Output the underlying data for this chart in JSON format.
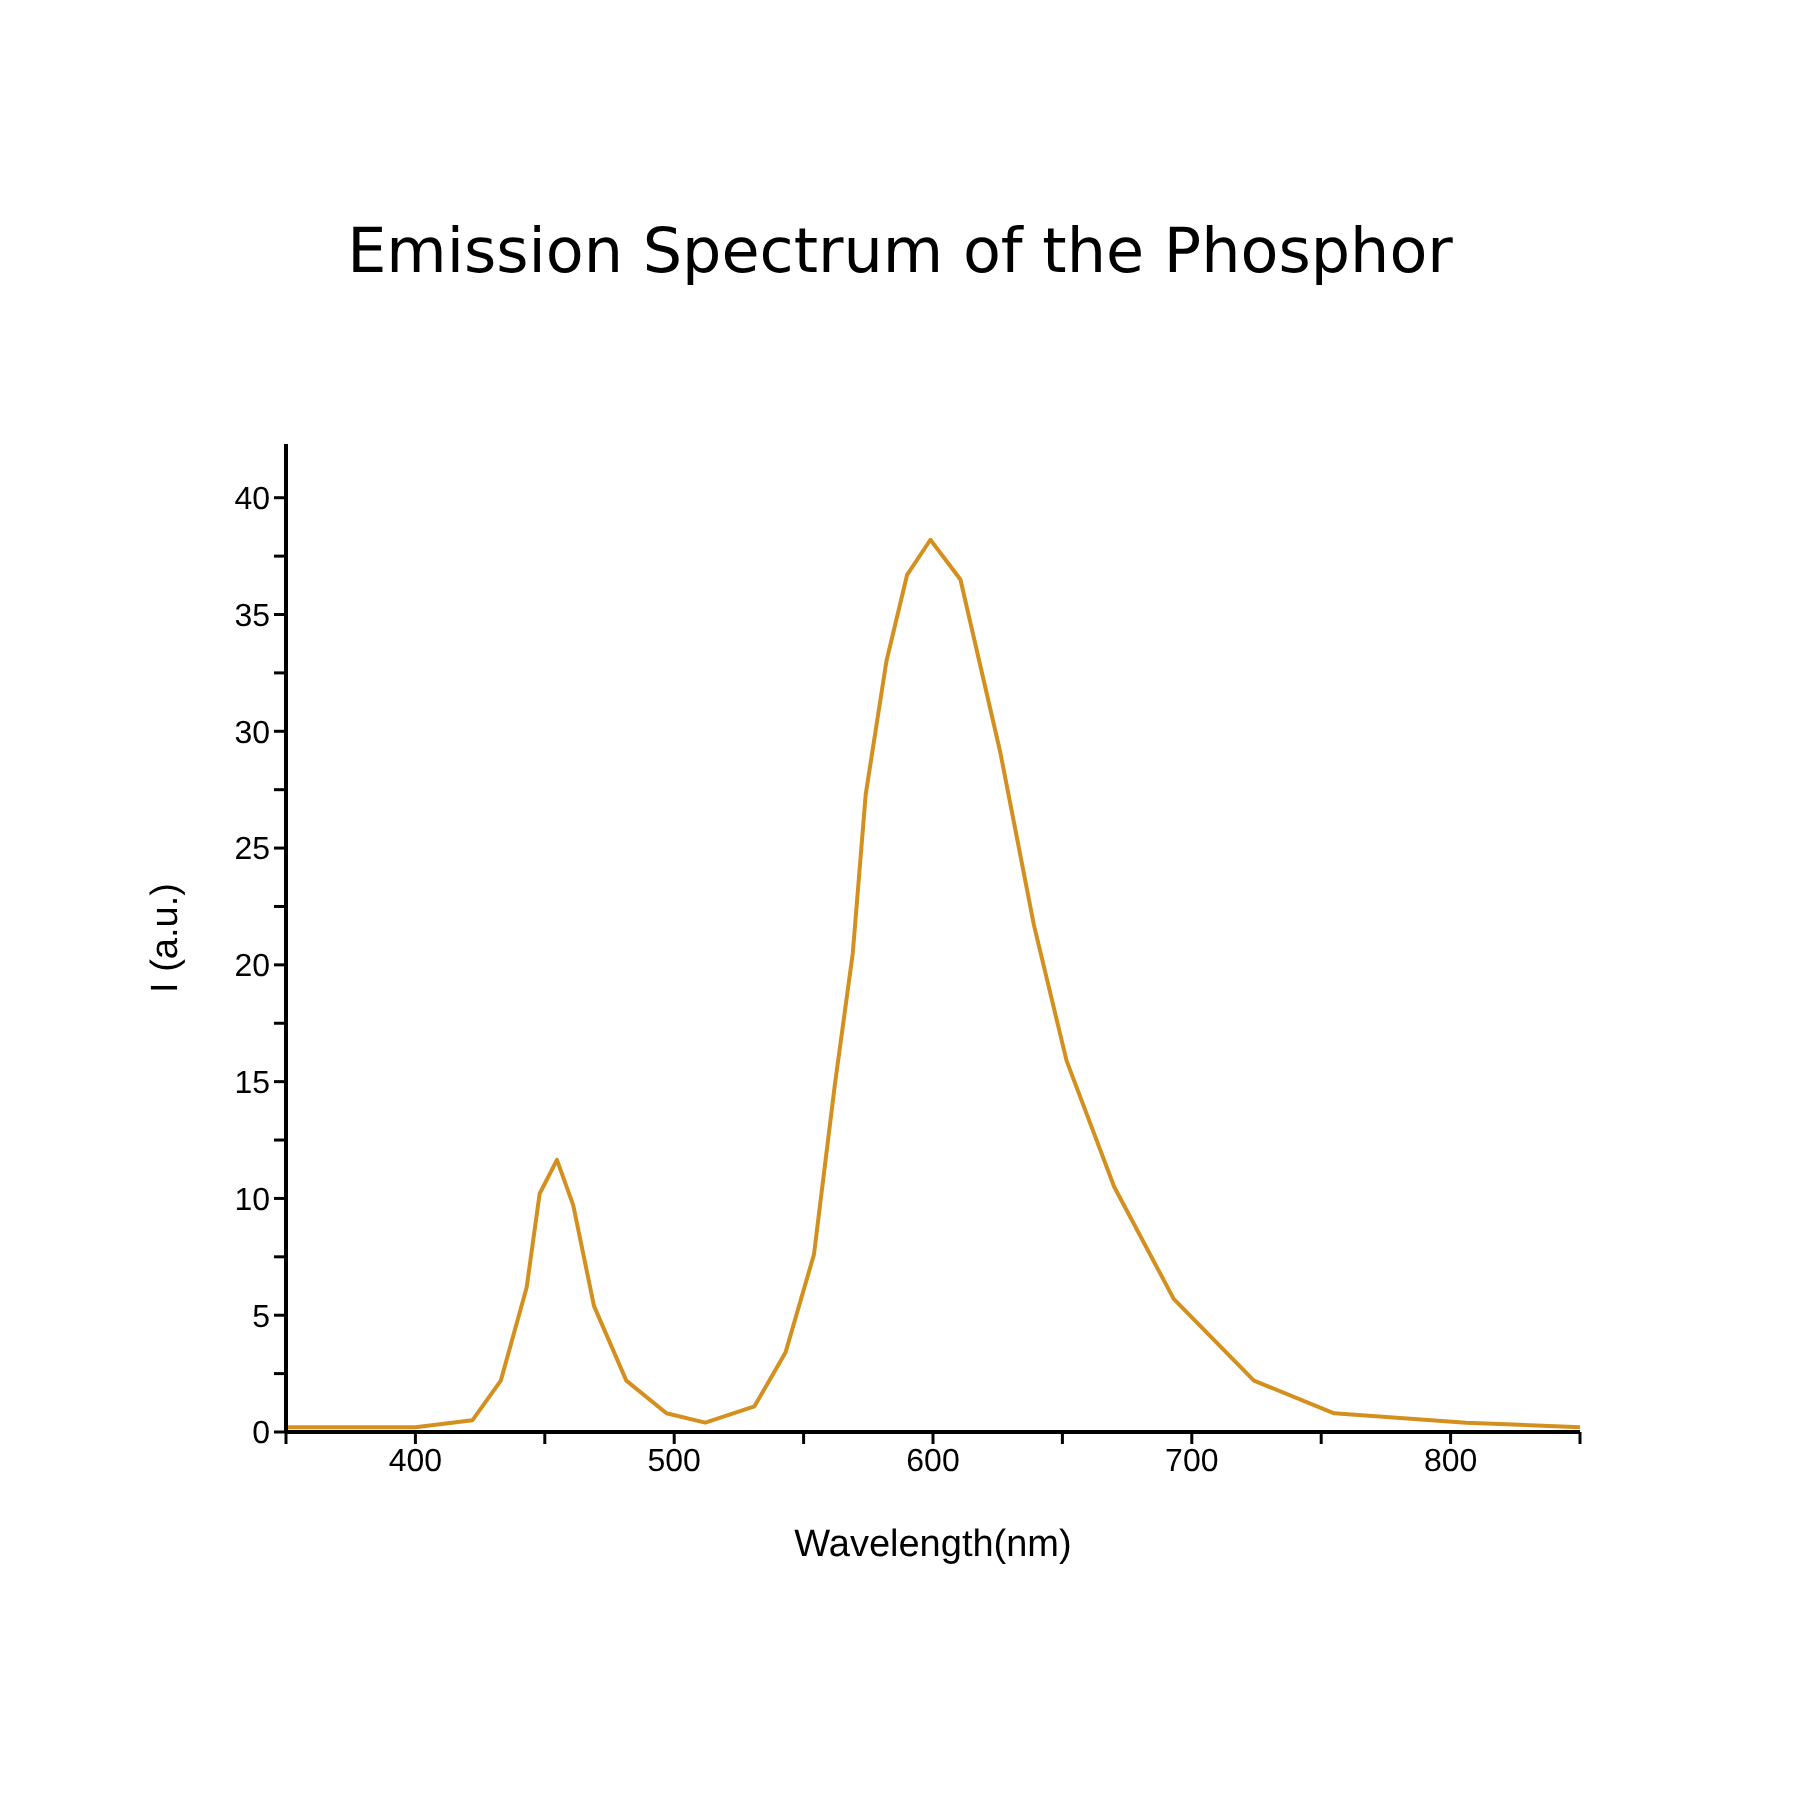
{
  "chart_data": {
    "type": "line",
    "title": "Emission Spectrum of the Phosphor",
    "xlabel": "Wavelength(nm)",
    "ylabel": "I  (a.u.)",
    "x": [
      350,
      400,
      422,
      433,
      443,
      448,
      454.7,
      461,
      469,
      481.5,
      497,
      512,
      531,
      543,
      554,
      562,
      569,
      574,
      582,
      590,
      599,
      610.6,
      626,
      639,
      651.6,
      670,
      693,
      724,
      755,
      806,
      850
    ],
    "series": [
      {
        "color": "#d4901e",
        "values": [
          0.2,
          0.2,
          0.5,
          2.2,
          6.2,
          10.2,
          11.65,
          9.7,
          5.4,
          2.2,
          0.8,
          0.4,
          1.1,
          3.4,
          7.6,
          14.8,
          20.5,
          27.3,
          33,
          36.7,
          38.2,
          36.5,
          29.1,
          21.7,
          15.9,
          10.5,
          5.7,
          2.2,
          0.8,
          0.4,
          0.2
        ]
      }
    ],
    "xlim": [
      350,
      850
    ],
    "xticks": [
      {
        "value": 350,
        "label": null
      },
      400,
      {
        "value": 450,
        "label": null
      },
      500,
      {
        "value": 550,
        "label": null
      },
      600,
      {
        "value": 650,
        "label": null
      },
      700,
      {
        "value": 750,
        "label": null
      },
      800,
      {
        "value": 850,
        "label": null
      }
    ],
    "ylim": [
      0,
      42.3
    ],
    "yticks": [
      0,
      {
        "value": 2.5,
        "label": null
      },
      5,
      {
        "value": 7.5,
        "label": null
      },
      10,
      {
        "value": 12.5,
        "label": null
      },
      15,
      {
        "value": 17.5,
        "label": null
      },
      20,
      {
        "value": 22.5,
        "label": null
      },
      25,
      {
        "value": 27.5,
        "label": null
      },
      30,
      {
        "value": 32.5,
        "label": null
      },
      35,
      {
        "value": 37.5,
        "label": null
      },
      40
    ],
    "grid": false,
    "legend": false,
    "marker": "none",
    "line_style": "solid"
  }
}
